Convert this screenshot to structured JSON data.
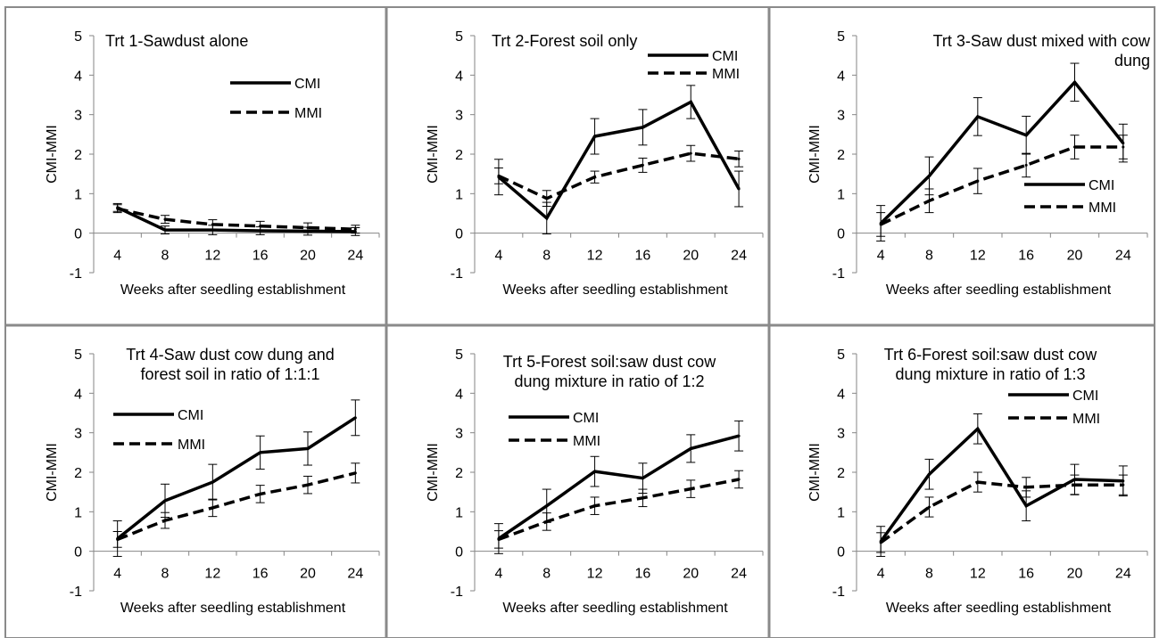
{
  "chart_data": [
    {
      "type": "line",
      "title": "Trt 1-Sawdust alone",
      "xlabel": "Weeks after seedling establishment",
      "ylabel": "CMI-MMI",
      "categories": [
        4,
        8,
        12,
        16,
        20,
        24
      ],
      "ylim": [
        -1,
        5
      ],
      "yticks": [
        -1,
        0,
        1,
        2,
        3,
        4,
        5
      ],
      "legend_position": "top-right",
      "series": [
        {
          "name": "CMI",
          "style": "solid",
          "values": [
            0.65,
            0.08,
            0.08,
            0.06,
            0.05,
            0.04
          ],
          "errors": [
            0.1,
            0.1,
            0.12,
            0.1,
            0.1,
            0.1
          ]
        },
        {
          "name": "MMI",
          "style": "dashed",
          "values": [
            0.62,
            0.35,
            0.22,
            0.18,
            0.14,
            0.1
          ],
          "errors": [
            0.1,
            0.1,
            0.12,
            0.12,
            0.12,
            0.1
          ]
        }
      ]
    },
    {
      "type": "line",
      "title": "Trt 2-Forest soil only",
      "xlabel": "Weeks after seedling establishment",
      "ylabel": "CMI-MMI",
      "categories": [
        4,
        8,
        12,
        16,
        20,
        24
      ],
      "ylim": [
        -1,
        5
      ],
      "yticks": [
        -1,
        0,
        1,
        2,
        3,
        4,
        5
      ],
      "legend_position": "top-right",
      "series": [
        {
          "name": "CMI",
          "style": "solid",
          "values": [
            1.42,
            0.38,
            2.45,
            2.68,
            3.32,
            1.12
          ],
          "errors": [
            0.45,
            0.4,
            0.45,
            0.45,
            0.42,
            0.45
          ]
        },
        {
          "name": "MMI",
          "style": "dashed",
          "values": [
            1.45,
            0.88,
            1.42,
            1.72,
            2.02,
            1.88
          ],
          "errors": [
            0.2,
            0.2,
            0.15,
            0.18,
            0.2,
            0.2
          ]
        }
      ]
    },
    {
      "type": "line",
      "title": "Trt 3-Saw dust mixed with cow dung",
      "xlabel": "Weeks after seedling establishment",
      "ylabel": "CMI-MMI",
      "categories": [
        4,
        8,
        12,
        16,
        20,
        24
      ],
      "ylim": [
        -1,
        5
      ],
      "yticks": [
        -1,
        0,
        1,
        2,
        3,
        4,
        5
      ],
      "legend_position": "middle-right",
      "series": [
        {
          "name": "CMI",
          "style": "solid",
          "values": [
            0.25,
            1.45,
            2.95,
            2.48,
            3.82,
            2.28
          ],
          "errors": [
            0.45,
            0.48,
            0.48,
            0.48,
            0.48,
            0.48
          ]
        },
        {
          "name": "MMI",
          "style": "dashed",
          "values": [
            0.22,
            0.82,
            1.32,
            1.72,
            2.18,
            2.18
          ],
          "errors": [
            0.3,
            0.3,
            0.32,
            0.3,
            0.3,
            0.3
          ]
        }
      ]
    },
    {
      "type": "line",
      "title": "Trt 4-Saw dust cow dung and forest soil in ratio of 1:1:1",
      "xlabel": "Weeks after seedling establishment",
      "ylabel": "CMI-MMI",
      "categories": [
        4,
        8,
        12,
        16,
        20,
        24
      ],
      "ylim": [
        -1,
        5
      ],
      "yticks": [
        -1,
        0,
        1,
        2,
        3,
        4,
        5
      ],
      "legend_position": "top-left",
      "series": [
        {
          "name": "CMI",
          "style": "solid",
          "values": [
            0.32,
            1.28,
            1.75,
            2.5,
            2.6,
            3.38
          ],
          "errors": [
            0.45,
            0.42,
            0.45,
            0.42,
            0.42,
            0.45
          ]
        },
        {
          "name": "MMI",
          "style": "dashed",
          "values": [
            0.3,
            0.78,
            1.1,
            1.45,
            1.68,
            1.98
          ],
          "errors": [
            0.2,
            0.2,
            0.22,
            0.22,
            0.22,
            0.25
          ]
        }
      ]
    },
    {
      "type": "line",
      "title": "Trt 5-Forest soil:saw dust cow dung mixture in ratio of 1:2",
      "xlabel": "Weeks after seedling establishment",
      "ylabel": "CMI-MMI",
      "categories": [
        4,
        8,
        12,
        16,
        20,
        24
      ],
      "ylim": [
        -1,
        5
      ],
      "yticks": [
        -1,
        0,
        1,
        2,
        3,
        4,
        5
      ],
      "legend_position": "top-left",
      "series": [
        {
          "name": "CMI",
          "style": "solid",
          "values": [
            0.32,
            1.15,
            2.02,
            1.85,
            2.6,
            2.92
          ],
          "errors": [
            0.38,
            0.42,
            0.38,
            0.38,
            0.35,
            0.38
          ]
        },
        {
          "name": "MMI",
          "style": "dashed",
          "values": [
            0.3,
            0.75,
            1.15,
            1.35,
            1.58,
            1.82
          ],
          "errors": [
            0.22,
            0.22,
            0.22,
            0.22,
            0.22,
            0.22
          ]
        }
      ]
    },
    {
      "type": "line",
      "title": "Trt 6-Forest soil:saw dust cow dung mixture in ratio of 1:3",
      "xlabel": "Weeks after seedling establishment",
      "ylabel": "CMI-MMI",
      "categories": [
        4,
        8,
        12,
        16,
        20,
        24
      ],
      "ylim": [
        -1,
        5
      ],
      "yticks": [
        -1,
        0,
        1,
        2,
        3,
        4,
        5
      ],
      "legend_position": "top-right",
      "series": [
        {
          "name": "CMI",
          "style": "solid",
          "values": [
            0.25,
            1.95,
            3.1,
            1.15,
            1.82,
            1.78
          ],
          "errors": [
            0.38,
            0.38,
            0.38,
            0.38,
            0.38,
            0.38
          ]
        },
        {
          "name": "MMI",
          "style": "dashed",
          "values": [
            0.22,
            1.12,
            1.75,
            1.62,
            1.68,
            1.68
          ],
          "errors": [
            0.25,
            0.25,
            0.25,
            0.25,
            0.25,
            0.25
          ]
        }
      ]
    }
  ]
}
